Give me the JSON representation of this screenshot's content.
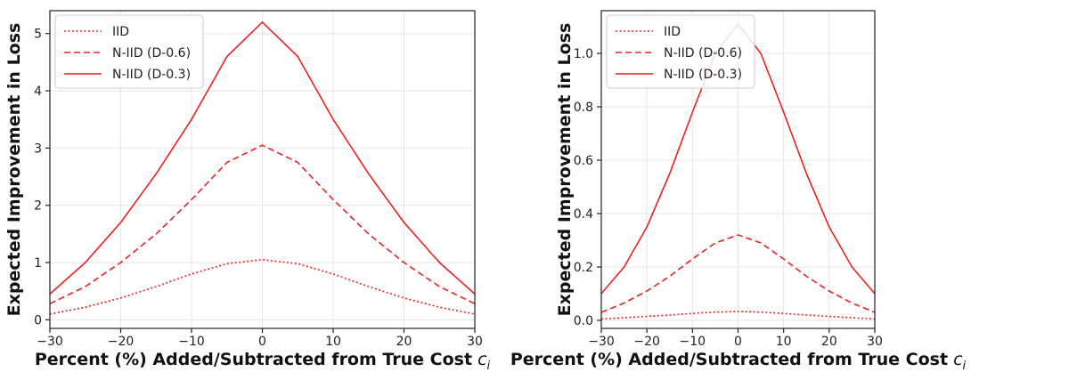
{
  "line_color": "#e8231f",
  "chart_data": [
    {
      "type": "line",
      "title": "",
      "xlabel": "Percent (%) Added/Subtracted from True Cost",
      "xlabel_symbol": "c",
      "xlabel_subscript": "i",
      "ylabel": "Expected Improvement in Loss",
      "xlim": [
        -30,
        30
      ],
      "ylim": [
        -0.15,
        5.4
      ],
      "xticks": [
        -30,
        -20,
        -10,
        0,
        10,
        20,
        30
      ],
      "xtick_labels": [
        "−30",
        "−20",
        "−10",
        "0",
        "10",
        "20",
        "30"
      ],
      "yticks": [
        0,
        1,
        2,
        3,
        4,
        5
      ],
      "ytick_labels": [
        "0",
        "1",
        "2",
        "3",
        "4",
        "5"
      ],
      "grid": true,
      "legend_position": "top-left",
      "x": [
        -30,
        -25,
        -20,
        -15,
        -10,
        -5,
        0,
        5,
        10,
        15,
        20,
        25,
        30
      ],
      "series": [
        {
          "name": "IID",
          "style": "dotted",
          "values": [
            0.1,
            0.22,
            0.38,
            0.58,
            0.8,
            0.98,
            1.05,
            0.98,
            0.8,
            0.58,
            0.38,
            0.22,
            0.1
          ]
        },
        {
          "name": "N-IID (D-0.6)",
          "style": "dashed",
          "values": [
            0.28,
            0.58,
            1.0,
            1.5,
            2.1,
            2.75,
            3.05,
            2.75,
            2.1,
            1.5,
            1.0,
            0.58,
            0.28
          ]
        },
        {
          "name": "N-IID (D-0.3)",
          "style": "solid",
          "values": [
            0.45,
            1.0,
            1.7,
            2.55,
            3.5,
            4.6,
            5.2,
            4.6,
            3.5,
            2.55,
            1.7,
            1.0,
            0.45
          ]
        }
      ]
    },
    {
      "type": "line",
      "title": "",
      "xlabel": "Percent (%) Added/Subtracted from True Cost",
      "xlabel_symbol": "c",
      "xlabel_subscript": "i",
      "ylabel": "Expected Improvement in Loss",
      "xlim": [
        -30,
        30
      ],
      "ylim": [
        -0.03,
        1.16
      ],
      "xticks": [
        -30,
        -20,
        -10,
        0,
        10,
        20,
        30
      ],
      "xtick_labels": [
        "−30",
        "−20",
        "−10",
        "0",
        "10",
        "20",
        "30"
      ],
      "yticks": [
        0.0,
        0.2,
        0.4,
        0.6,
        0.8,
        1.0
      ],
      "ytick_labels": [
        "0.0",
        "0.2",
        "0.4",
        "0.6",
        "0.8",
        "1.0"
      ],
      "grid": true,
      "legend_position": "top-left",
      "x": [
        -30,
        -25,
        -20,
        -15,
        -10,
        -5,
        0,
        5,
        10,
        15,
        20,
        25,
        30
      ],
      "series": [
        {
          "name": "IID",
          "style": "dotted",
          "values": [
            0.005,
            0.01,
            0.015,
            0.02,
            0.026,
            0.031,
            0.033,
            0.031,
            0.026,
            0.02,
            0.015,
            0.01,
            0.005
          ]
        },
        {
          "name": "N-IID (D-0.6)",
          "style": "dashed",
          "values": [
            0.03,
            0.065,
            0.11,
            0.165,
            0.23,
            0.29,
            0.32,
            0.29,
            0.23,
            0.165,
            0.11,
            0.065,
            0.03
          ]
        },
        {
          "name": "N-IID (D-0.3)",
          "style": "solid",
          "values": [
            0.1,
            0.2,
            0.35,
            0.55,
            0.78,
            1.0,
            1.11,
            1.0,
            0.78,
            0.55,
            0.35,
            0.2,
            0.1
          ]
        }
      ]
    }
  ]
}
